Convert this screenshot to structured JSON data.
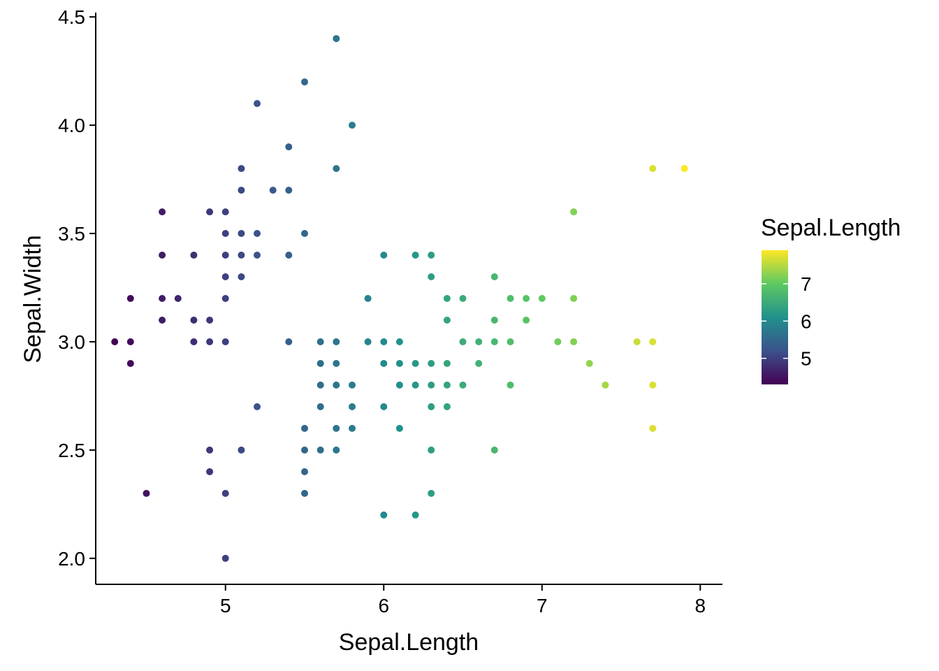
{
  "chart_data": {
    "type": "scatter",
    "title": "",
    "xlabel": "Sepal.Length",
    "ylabel": "Sepal.Width",
    "xlim": [
      4.18,
      8.14
    ],
    "ylim": [
      1.88,
      4.52
    ],
    "x_ticks": [
      5,
      6,
      7,
      8
    ],
    "x_tick_labels": [
      "5",
      "6",
      "7",
      "8"
    ],
    "y_ticks": [
      2.0,
      2.5,
      3.0,
      3.5,
      4.0,
      4.5
    ],
    "y_tick_labels": [
      "2.0",
      "2.5",
      "3.0",
      "3.5",
      "4.0",
      "4.5"
    ],
    "grid": false,
    "legend": {
      "title": "Sepal.Length",
      "placement": "right",
      "type": "colorbar",
      "range": [
        4.3,
        7.9
      ],
      "ticks": [
        5,
        6,
        7
      ],
      "tick_labels": [
        "5",
        "6",
        "7"
      ],
      "palette": "viridis",
      "colors": [
        "#440154",
        "#3b528b",
        "#21918c",
        "#5ec962",
        "#fde725"
      ]
    },
    "point_color_by": "x",
    "points": [
      [
        4.3,
        3.0
      ],
      [
        4.4,
        3.2
      ],
      [
        4.4,
        3.0
      ],
      [
        4.4,
        2.9
      ],
      [
        4.5,
        2.3
      ],
      [
        4.6,
        3.6
      ],
      [
        4.6,
        3.4
      ],
      [
        4.6,
        3.2
      ],
      [
        4.6,
        3.1
      ],
      [
        4.7,
        3.2
      ],
      [
        4.8,
        3.4
      ],
      [
        4.8,
        3.1
      ],
      [
        4.8,
        3.0
      ],
      [
        4.9,
        3.6
      ],
      [
        4.9,
        3.1
      ],
      [
        4.9,
        3.0
      ],
      [
        4.9,
        2.5
      ],
      [
        4.9,
        2.4
      ],
      [
        5.0,
        3.6
      ],
      [
        5.0,
        3.5
      ],
      [
        5.0,
        3.4
      ],
      [
        5.0,
        3.3
      ],
      [
        5.0,
        3.2
      ],
      [
        5.0,
        3.0
      ],
      [
        5.0,
        2.3
      ],
      [
        5.0,
        2.0
      ],
      [
        5.1,
        3.8
      ],
      [
        5.1,
        3.7
      ],
      [
        5.1,
        3.5
      ],
      [
        5.1,
        3.4
      ],
      [
        5.1,
        3.3
      ],
      [
        5.1,
        2.5
      ],
      [
        5.2,
        4.1
      ],
      [
        5.2,
        3.5
      ],
      [
        5.2,
        3.4
      ],
      [
        5.2,
        2.7
      ],
      [
        5.3,
        3.7
      ],
      [
        5.4,
        3.9
      ],
      [
        5.4,
        3.7
      ],
      [
        5.4,
        3.4
      ],
      [
        5.4,
        3.0
      ],
      [
        5.5,
        4.2
      ],
      [
        5.5,
        3.5
      ],
      [
        5.5,
        2.6
      ],
      [
        5.5,
        2.5
      ],
      [
        5.5,
        2.4
      ],
      [
        5.5,
        2.3
      ],
      [
        5.6,
        3.0
      ],
      [
        5.6,
        2.9
      ],
      [
        5.6,
        2.8
      ],
      [
        5.6,
        2.7
      ],
      [
        5.6,
        2.5
      ],
      [
        5.7,
        4.4
      ],
      [
        5.7,
        3.8
      ],
      [
        5.7,
        3.0
      ],
      [
        5.7,
        2.9
      ],
      [
        5.7,
        2.8
      ],
      [
        5.7,
        2.6
      ],
      [
        5.7,
        2.5
      ],
      [
        5.8,
        4.0
      ],
      [
        5.8,
        2.8
      ],
      [
        5.8,
        2.7
      ],
      [
        5.8,
        2.6
      ],
      [
        5.9,
        3.2
      ],
      [
        5.9,
        3.0
      ],
      [
        6.0,
        3.4
      ],
      [
        6.0,
        3.0
      ],
      [
        6.0,
        2.9
      ],
      [
        6.0,
        2.7
      ],
      [
        6.0,
        2.2
      ],
      [
        6.1,
        3.0
      ],
      [
        6.1,
        2.9
      ],
      [
        6.1,
        2.8
      ],
      [
        6.1,
        2.6
      ],
      [
        6.2,
        3.4
      ],
      [
        6.2,
        2.9
      ],
      [
        6.2,
        2.8
      ],
      [
        6.2,
        2.2
      ],
      [
        6.3,
        3.4
      ],
      [
        6.3,
        3.3
      ],
      [
        6.3,
        2.9
      ],
      [
        6.3,
        2.8
      ],
      [
        6.3,
        2.7
      ],
      [
        6.3,
        2.5
      ],
      [
        6.3,
        2.3
      ],
      [
        6.4,
        3.2
      ],
      [
        6.4,
        3.1
      ],
      [
        6.4,
        2.9
      ],
      [
        6.4,
        2.8
      ],
      [
        6.4,
        2.7
      ],
      [
        6.5,
        3.2
      ],
      [
        6.5,
        3.0
      ],
      [
        6.5,
        2.8
      ],
      [
        6.6,
        3.0
      ],
      [
        6.6,
        2.9
      ],
      [
        6.7,
        3.3
      ],
      [
        6.7,
        3.1
      ],
      [
        6.7,
        3.0
      ],
      [
        6.7,
        2.5
      ],
      [
        6.8,
        3.2
      ],
      [
        6.8,
        3.0
      ],
      [
        6.8,
        2.8
      ],
      [
        6.9,
        3.2
      ],
      [
        6.9,
        3.1
      ],
      [
        7.0,
        3.2
      ],
      [
        7.1,
        3.0
      ],
      [
        7.2,
        3.6
      ],
      [
        7.2,
        3.2
      ],
      [
        7.2,
        3.0
      ],
      [
        7.3,
        2.9
      ],
      [
        7.4,
        2.8
      ],
      [
        7.6,
        3.0
      ],
      [
        7.7,
        3.8
      ],
      [
        7.7,
        3.0
      ],
      [
        7.7,
        2.8
      ],
      [
        7.7,
        2.6
      ],
      [
        7.9,
        3.8
      ]
    ]
  }
}
